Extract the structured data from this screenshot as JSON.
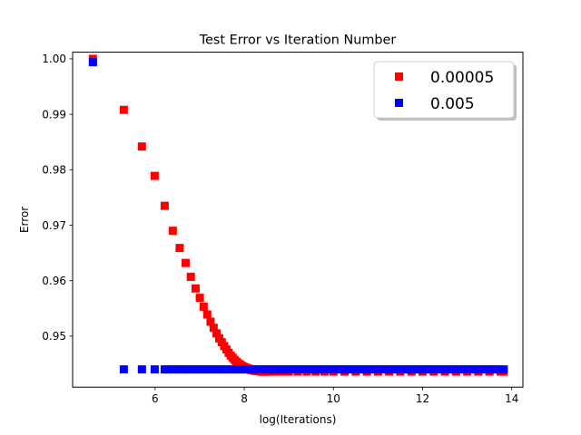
{
  "chart_data": {
    "type": "scatter",
    "title": "Test Error vs Iteration Number",
    "xlabel": "log(Iterations)",
    "ylabel": "Error",
    "xlim": [
      4.15,
      14.25
    ],
    "ylim": [
      0.9408,
      1.0012
    ],
    "xticks": [
      6,
      8,
      10,
      12,
      14
    ],
    "yticks": [
      0.95,
      0.96,
      0.97,
      0.98,
      0.99,
      1.0
    ],
    "xtick_labels": [
      "6",
      "8",
      "10",
      "12",
      "14"
    ],
    "ytick_labels": [
      "0.95",
      "0.96",
      "0.97",
      "0.98",
      "0.99",
      "1.00"
    ],
    "grid": false,
    "legend_position": "top-right",
    "series": [
      {
        "name": "0.00005",
        "color": "#ff0000",
        "marker": "square",
        "x": [
          4.605,
          5.298,
          5.704,
          5.991,
          6.215,
          6.397,
          6.551,
          6.685,
          6.802,
          6.908,
          7.003,
          7.09,
          7.17,
          7.244,
          7.313,
          7.378,
          7.438,
          7.496,
          7.55,
          7.601,
          7.65,
          7.696,
          7.741,
          7.783,
          7.824,
          7.863,
          7.901,
          7.937,
          7.972,
          8.006,
          8.039,
          8.07,
          8.101,
          8.131,
          8.16,
          8.188,
          8.216,
          8.243,
          8.269,
          8.294,
          8.319,
          8.343,
          8.367,
          8.39,
          8.412,
          8.434,
          8.456,
          8.477,
          8.497,
          8.517,
          8.6,
          8.7,
          8.8,
          8.9,
          9.0,
          9.2,
          9.4,
          9.6,
          9.8,
          10.0,
          10.25,
          10.5,
          10.75,
          11.0,
          11.25,
          11.5,
          11.75,
          12.0,
          12.25,
          12.5,
          12.75,
          13.0,
          13.25,
          13.5,
          13.75,
          13.82
        ],
        "y": [
          1.0,
          0.9908,
          0.9842,
          0.9789,
          0.9735,
          0.969,
          0.9659,
          0.9632,
          0.9607,
          0.9586,
          0.9569,
          0.9553,
          0.9539,
          0.9526,
          0.9515,
          0.9505,
          0.9496,
          0.9489,
          0.9482,
          0.9476,
          0.947,
          0.9465,
          0.9461,
          0.9457,
          0.9454,
          0.9451,
          0.9449,
          0.9447,
          0.9445,
          0.9444,
          0.9443,
          0.9442,
          0.9441,
          0.944,
          0.9439,
          0.9439,
          0.9438,
          0.9438,
          0.9437,
          0.9437,
          0.9437,
          0.9437,
          0.9436,
          0.9436,
          0.9436,
          0.9436,
          0.9436,
          0.9436,
          0.9436,
          0.9436,
          0.9436,
          0.9436,
          0.9436,
          0.9436,
          0.9436,
          0.9436,
          0.9436,
          0.9436,
          0.9436,
          0.9436,
          0.9436,
          0.9436,
          0.9436,
          0.9436,
          0.9436,
          0.9436,
          0.9436,
          0.9436,
          0.9436,
          0.9436,
          0.9436,
          0.9436,
          0.9436,
          0.9436,
          0.9436,
          0.9436
        ]
      },
      {
        "name": "0.005",
        "color": "#0000ff",
        "marker": "square",
        "x": [
          4.605,
          5.298,
          5.704,
          5.991,
          6.215,
          6.3,
          6.4,
          6.5,
          6.6,
          6.7,
          6.8,
          6.9,
          7.0,
          7.1,
          7.2,
          7.3,
          7.4,
          7.5,
          7.6,
          7.7,
          7.8,
          7.9,
          8.0,
          8.1,
          8.2,
          8.3,
          8.4,
          8.5,
          8.6,
          8.7,
          8.8,
          8.9,
          9.0,
          9.1,
          9.2,
          9.3,
          9.4,
          9.5,
          9.6,
          9.7,
          9.8,
          9.9,
          10.0,
          10.1,
          10.2,
          10.3,
          10.4,
          10.5,
          10.6,
          10.7,
          10.8,
          10.9,
          11.0,
          11.1,
          11.2,
          11.3,
          11.4,
          11.5,
          11.6,
          11.7,
          11.8,
          11.9,
          12.0,
          12.1,
          12.2,
          12.3,
          12.4,
          12.5,
          12.6,
          12.7,
          12.8,
          12.9,
          13.0,
          13.1,
          13.2,
          13.3,
          13.4,
          13.5,
          13.6,
          13.7,
          13.82
        ],
        "y": [
          0.9994,
          0.944,
          0.944,
          0.944,
          0.944,
          0.944,
          0.944,
          0.944,
          0.944,
          0.944,
          0.944,
          0.944,
          0.944,
          0.944,
          0.944,
          0.944,
          0.944,
          0.944,
          0.944,
          0.944,
          0.944,
          0.944,
          0.944,
          0.944,
          0.944,
          0.944,
          0.944,
          0.944,
          0.944,
          0.944,
          0.944,
          0.944,
          0.944,
          0.944,
          0.944,
          0.944,
          0.944,
          0.944,
          0.944,
          0.944,
          0.944,
          0.944,
          0.944,
          0.944,
          0.944,
          0.944,
          0.944,
          0.944,
          0.944,
          0.944,
          0.944,
          0.944,
          0.944,
          0.944,
          0.944,
          0.944,
          0.944,
          0.944,
          0.944,
          0.944,
          0.944,
          0.944,
          0.944,
          0.944,
          0.944,
          0.944,
          0.944,
          0.944,
          0.944,
          0.944,
          0.944,
          0.944,
          0.944,
          0.944,
          0.944,
          0.944,
          0.944,
          0.944,
          0.944,
          0.944,
          0.944
        ]
      }
    ]
  }
}
